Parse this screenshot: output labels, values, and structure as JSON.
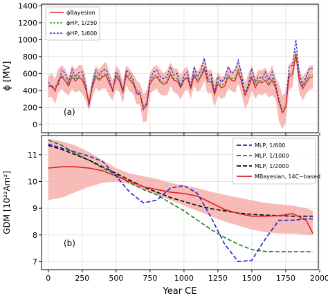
{
  "chart_data": [
    {
      "type": "line",
      "panel_label": "(a)",
      "ylabel": "ϕ [MV]",
      "ylim": [
        -100,
        1420
      ],
      "yticks": [
        0,
        200,
        400,
        600,
        800,
        1000,
        1200,
        1400
      ],
      "xlim": [
        -50,
        1990
      ],
      "grid": true,
      "legend_position": "top-left",
      "colors": {
        "bayes": "#e02020",
        "band": "#f4a6a0",
        "hp250": "#2e8b2e",
        "hp600": "#1f1fcc"
      },
      "x": [
        0,
        25,
        50,
        75,
        100,
        125,
        150,
        175,
        200,
        225,
        250,
        275,
        300,
        325,
        350,
        375,
        400,
        425,
        450,
        475,
        500,
        525,
        550,
        575,
        600,
        625,
        650,
        675,
        700,
        725,
        750,
        775,
        800,
        825,
        850,
        875,
        900,
        925,
        950,
        975,
        1000,
        1025,
        1050,
        1075,
        1100,
        1125,
        1150,
        1175,
        1200,
        1225,
        1250,
        1275,
        1300,
        1325,
        1350,
        1375,
        1400,
        1425,
        1450,
        1475,
        1500,
        1525,
        1550,
        1575,
        1600,
        1625,
        1650,
        1675,
        1700,
        1725,
        1750,
        1775,
        1800,
        1825,
        1850,
        1875,
        1900,
        1925,
        1950
      ],
      "bayes_upper": [
        560,
        600,
        540,
        660,
        700,
        650,
        560,
        700,
        650,
        700,
        700,
        560,
        340,
        560,
        690,
        650,
        700,
        740,
        620,
        520,
        700,
        640,
        510,
        700,
        650,
        600,
        520,
        490,
        360,
        400,
        600,
        680,
        700,
        650,
        600,
        640,
        730,
        660,
        660,
        570,
        660,
        680,
        540,
        700,
        620,
        700,
        790,
        640,
        650,
        500,
        620,
        560,
        580,
        700,
        640,
        650,
        760,
        640,
        500,
        600,
        700,
        560,
        640,
        640,
        670,
        600,
        700,
        560,
        480,
        340,
        380,
        710,
        740,
        900,
        650,
        560,
        620,
        690,
        700
      ],
      "series": [
        {
          "name": "ϕBayesian",
          "key": "bayes",
          "values": [
            440,
            460,
            390,
            520,
            560,
            510,
            450,
            560,
            510,
            550,
            530,
            420,
            250,
            440,
            560,
            520,
            560,
            580,
            480,
            400,
            560,
            510,
            380,
            580,
            520,
            480,
            380,
            360,
            190,
            220,
            480,
            540,
            560,
            500,
            470,
            490,
            590,
            520,
            510,
            430,
            520,
            550,
            420,
            580,
            500,
            560,
            650,
            500,
            510,
            350,
            480,
            430,
            450,
            560,
            520,
            510,
            620,
            500,
            340,
            430,
            550,
            430,
            500,
            490,
            520,
            460,
            520,
            430,
            260,
            140,
            200,
            560,
            590,
            820,
            510,
            420,
            490,
            550,
            560
          ]
        },
        {
          "name": "ϕHP, 1/250",
          "key": "hp250",
          "values": [
            460,
            440,
            420,
            500,
            580,
            540,
            470,
            590,
            530,
            570,
            560,
            440,
            270,
            460,
            590,
            540,
            580,
            600,
            500,
            410,
            580,
            530,
            410,
            600,
            560,
            500,
            410,
            380,
            220,
            250,
            500,
            570,
            580,
            520,
            490,
            510,
            610,
            540,
            540,
            450,
            540,
            560,
            440,
            600,
            520,
            580,
            680,
            520,
            540,
            380,
            500,
            460,
            480,
            590,
            540,
            540,
            650,
            520,
            380,
            460,
            570,
            460,
            520,
            510,
            560,
            490,
            550,
            460,
            300,
            180,
            230,
            590,
            610,
            860,
            540,
            450,
            520,
            580,
            580
          ]
        },
        {
          "name": "ϕHP, 1/600",
          "key": "hp600",
          "values": [
            500,
            430,
            450,
            470,
            640,
            600,
            500,
            650,
            560,
            610,
            620,
            470,
            210,
            480,
            640,
            580,
            640,
            650,
            540,
            380,
            620,
            560,
            370,
            640,
            600,
            530,
            350,
            360,
            170,
            250,
            540,
            620,
            640,
            560,
            540,
            560,
            680,
            580,
            600,
            440,
            580,
            620,
            440,
            680,
            560,
            640,
            780,
            550,
            600,
            380,
            560,
            500,
            540,
            680,
            600,
            630,
            760,
            580,
            340,
            480,
            660,
            500,
            560,
            540,
            620,
            520,
            620,
            480,
            280,
            130,
            200,
            680,
            700,
            1000,
            600,
            460,
            560,
            660,
            660
          ]
        }
      ]
    },
    {
      "type": "line",
      "panel_label": "(b)",
      "ylabel": "GDM [10²²Am²]",
      "xlabel": "Year CE",
      "ylim": [
        6.7,
        11.72
      ],
      "yticks": [
        7,
        8,
        9,
        10,
        11
      ],
      "xlim": [
        -50,
        1990
      ],
      "xticks": [
        0,
        250,
        500,
        750,
        1000,
        1250,
        1500,
        1750,
        2000
      ],
      "xtick_labels": [
        "0",
        "250",
        "500",
        "750",
        "1000",
        "1250",
        "1500",
        "1750",
        "2000"
      ],
      "grid": true,
      "legend_position": "top-right",
      "colors": {
        "lp600": "#1f1fcc",
        "lp1000": "#1a7a1a",
        "lp2000": "#000000",
        "bayes14c": "#e02020",
        "band": "#f4a6a0"
      },
      "x": [
        0,
        100,
        200,
        300,
        400,
        500,
        600,
        700,
        800,
        900,
        1000,
        1100,
        1200,
        1300,
        1400,
        1500,
        1600,
        1700,
        1800,
        1900,
        1950
      ],
      "band_upper": [
        11.6,
        11.5,
        11.35,
        11.1,
        10.8,
        10.5,
        10.3,
        10.2,
        10.1,
        9.95,
        9.85,
        9.75,
        9.62,
        9.5,
        9.4,
        9.3,
        9.2,
        9.15,
        9.1,
        9.0,
        8.9
      ],
      "band_lower": [
        9.3,
        9.4,
        9.6,
        9.8,
        9.95,
        10.0,
        9.9,
        9.7,
        9.5,
        9.3,
        9.1,
        8.9,
        8.7,
        8.5,
        8.35,
        8.2,
        8.1,
        8.05,
        8.05,
        8.0,
        8.0
      ],
      "series": [
        {
          "name": "MLP, 1/600",
          "key": "lp600",
          "dash": true,
          "values": [
            11.4,
            11.25,
            11.1,
            10.95,
            10.75,
            10.2,
            9.6,
            9.2,
            9.3,
            9.75,
            9.85,
            9.55,
            8.65,
            7.65,
            7.0,
            7.05,
            7.85,
            8.55,
            8.55,
            8.6,
            8.6
          ]
        },
        {
          "name": "MLP, 1/1000",
          "key": "lp1000",
          "dash": true,
          "values": [
            11.55,
            11.35,
            11.05,
            10.8,
            10.5,
            10.25,
            9.95,
            9.7,
            9.5,
            9.2,
            8.9,
            8.55,
            8.2,
            7.9,
            7.65,
            7.45,
            7.38,
            7.37,
            7.37,
            7.37,
            7.37
          ]
        },
        {
          "name": "MLP, 1/2000",
          "key": "lp2000",
          "dash": true,
          "values": [
            11.35,
            11.2,
            11.0,
            10.8,
            10.55,
            10.3,
            10.05,
            9.8,
            9.6,
            9.4,
            9.25,
            9.1,
            8.98,
            8.9,
            8.82,
            8.77,
            8.74,
            8.72,
            8.7,
            8.7,
            8.7
          ]
        },
        {
          "name": "MBayesian, 14C−based",
          "key": "bayes14c",
          "dash": false,
          "values": [
            10.5,
            10.55,
            10.55,
            10.5,
            10.4,
            10.2,
            10.0,
            9.8,
            9.7,
            9.6,
            9.55,
            9.45,
            9.2,
            8.95,
            8.8,
            8.7,
            8.7,
            8.72,
            8.8,
            8.55,
            8.05
          ]
        }
      ]
    }
  ]
}
